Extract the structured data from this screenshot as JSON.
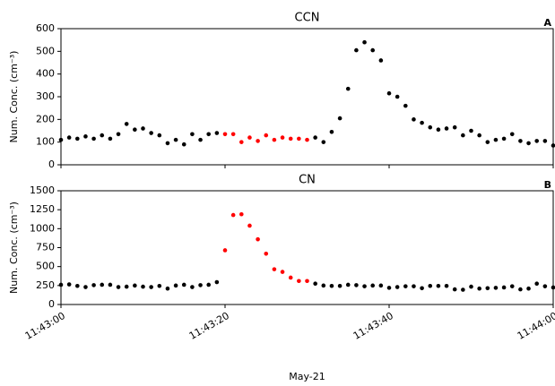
{
  "chart_data": [
    {
      "type": "scatter",
      "title": "CCN",
      "panel_label": "A",
      "ylabel": "Num. Conc. (cm⁻³)",
      "x": [
        "11:43:00",
        "11:43:01",
        "11:43:02",
        "11:43:03",
        "11:43:04",
        "11:43:05",
        "11:43:06",
        "11:43:07",
        "11:43:08",
        "11:43:09",
        "11:43:10",
        "11:43:11",
        "11:43:12",
        "11:43:13",
        "11:43:14",
        "11:43:15",
        "11:43:16",
        "11:43:17",
        "11:43:18",
        "11:43:19",
        "11:43:20",
        "11:43:21",
        "11:43:22",
        "11:43:23",
        "11:43:24",
        "11:43:25",
        "11:43:26",
        "11:43:27",
        "11:43:28",
        "11:43:29",
        "11:43:30",
        "11:43:31",
        "11:43:32",
        "11:43:33",
        "11:43:34",
        "11:43:35",
        "11:43:36",
        "11:43:37",
        "11:43:38",
        "11:43:39",
        "11:43:40",
        "11:43:41",
        "11:43:42",
        "11:43:43",
        "11:43:44",
        "11:43:45",
        "11:43:46",
        "11:43:47",
        "11:43:48",
        "11:43:49",
        "11:43:50",
        "11:43:51",
        "11:43:52",
        "11:43:53",
        "11:43:54",
        "11:43:55",
        "11:43:56",
        "11:43:57",
        "11:43:58",
        "11:43:59",
        "11:44:00"
      ],
      "series": [
        {
          "color": "#000000",
          "values": [
            110,
            120,
            115,
            125,
            115,
            130,
            115,
            135,
            180,
            155,
            160,
            140,
            130,
            95,
            110,
            90,
            135,
            110,
            135,
            140,
            null,
            null,
            null,
            null,
            null,
            null,
            null,
            null,
            null,
            null,
            null,
            120,
            100,
            145,
            205,
            335,
            505,
            540,
            505,
            460,
            315,
            300,
            260,
            200,
            185,
            165,
            155,
            160,
            165,
            130,
            150,
            130,
            100,
            110,
            115,
            135,
            105,
            95,
            105,
            105,
            85
          ]
        },
        {
          "color": "#ff0000",
          "values": [
            null,
            null,
            null,
            null,
            null,
            null,
            null,
            null,
            null,
            null,
            null,
            null,
            null,
            null,
            null,
            null,
            null,
            null,
            null,
            null,
            135,
            135,
            100,
            120,
            105,
            130,
            110,
            120,
            115,
            115,
            110,
            null,
            null,
            null,
            null,
            null,
            null,
            null,
            null,
            null,
            null,
            null,
            null,
            null,
            null,
            null,
            null,
            null,
            null,
            null,
            null,
            null,
            null,
            null,
            null,
            null,
            null,
            null,
            null,
            null,
            null
          ]
        }
      ],
      "xlim": [
        "11:43:00",
        "11:44:00"
      ],
      "xticks": [
        "11:43:00",
        "11:43:20",
        "11:43:40",
        "11:44:00"
      ],
      "show_xticklabels": false,
      "ylim": [
        0,
        600
      ],
      "yticks": [
        0,
        100,
        200,
        300,
        400,
        500,
        600
      ]
    },
    {
      "type": "scatter",
      "title": "CN",
      "panel_label": "B",
      "ylabel": "Num. Conc. (cm⁻³)",
      "xlabel": "May-21",
      "x": [
        "11:43:00",
        "11:43:01",
        "11:43:02",
        "11:43:03",
        "11:43:04",
        "11:43:05",
        "11:43:06",
        "11:43:07",
        "11:43:08",
        "11:43:09",
        "11:43:10",
        "11:43:11",
        "11:43:12",
        "11:43:13",
        "11:43:14",
        "11:43:15",
        "11:43:16",
        "11:43:17",
        "11:43:18",
        "11:43:19",
        "11:43:20",
        "11:43:21",
        "11:43:22",
        "11:43:23",
        "11:43:24",
        "11:43:25",
        "11:43:26",
        "11:43:27",
        "11:43:28",
        "11:43:29",
        "11:43:30",
        "11:43:31",
        "11:43:32",
        "11:43:33",
        "11:43:34",
        "11:43:35",
        "11:43:36",
        "11:43:37",
        "11:43:38",
        "11:43:39",
        "11:43:40",
        "11:43:41",
        "11:43:42",
        "11:43:43",
        "11:43:44",
        "11:43:45",
        "11:43:46",
        "11:43:47",
        "11:43:48",
        "11:43:49",
        "11:43:50",
        "11:43:51",
        "11:43:52",
        "11:43:53",
        "11:43:54",
        "11:43:55",
        "11:43:56",
        "11:43:57",
        "11:43:58",
        "11:43:59",
        "11:44:00"
      ],
      "series": [
        {
          "color": "#000000",
          "values": [
            260,
            265,
            245,
            230,
            255,
            260,
            260,
            230,
            235,
            250,
            235,
            230,
            245,
            210,
            250,
            260,
            230,
            255,
            260,
            295,
            null,
            null,
            null,
            null,
            null,
            null,
            null,
            null,
            null,
            null,
            null,
            275,
            250,
            245,
            245,
            260,
            255,
            240,
            250,
            250,
            220,
            230,
            240,
            240,
            215,
            245,
            245,
            245,
            200,
            195,
            235,
            210,
            215,
            220,
            225,
            240,
            200,
            210,
            275,
            240,
            225
          ]
        },
        {
          "color": "#ff0000",
          "values": [
            null,
            null,
            null,
            null,
            null,
            null,
            null,
            null,
            null,
            null,
            null,
            null,
            null,
            null,
            null,
            null,
            null,
            null,
            null,
            null,
            715,
            1180,
            1190,
            1040,
            860,
            670,
            465,
            430,
            355,
            310,
            310,
            null,
            null,
            null,
            null,
            null,
            null,
            null,
            null,
            null,
            null,
            null,
            null,
            null,
            null,
            null,
            null,
            null,
            null,
            null,
            null,
            null,
            null,
            null,
            null,
            null,
            null,
            null,
            null,
            null,
            null
          ]
        }
      ],
      "xlim": [
        "11:43:00",
        "11:44:00"
      ],
      "xticks": [
        "11:43:00",
        "11:43:20",
        "11:43:40",
        "11:44:00"
      ],
      "show_xticklabels": true,
      "ylim": [
        0,
        1500
      ],
      "yticks": [
        0,
        250,
        500,
        750,
        1000,
        1250,
        1500
      ]
    }
  ]
}
